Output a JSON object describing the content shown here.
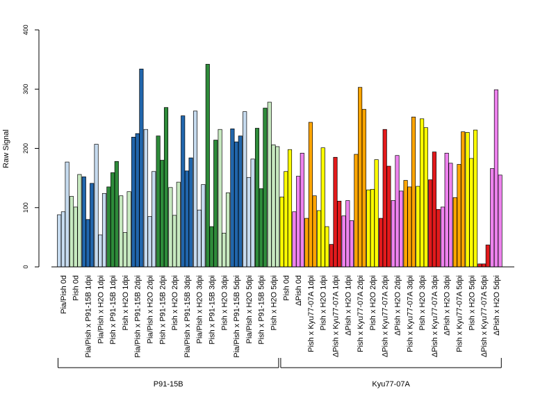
{
  "chart_data": {
    "type": "bar",
    "ylabel": "Raw Signal",
    "ylim": [
      0,
      400
    ],
    "yticks": [
      0,
      100,
      200,
      300,
      400
    ],
    "bars_per_sample": 3,
    "categories": [
      "Pia/Pish 0d",
      "Pish 0d",
      "Pia/Pish x P91-15B 1dpi",
      "Pia/Pish x H2O 1dpi",
      "Pish x P91-15B 1dpi",
      "Pish x H2O 1dpi",
      "Pia/Pish x P91-15B 2dpi",
      "Pia/Pish x H2O 2dpi",
      "Pish x P91-15B 2dpi",
      "Pish x H2O 2dpi",
      "Pia/Pish x P91-15B 3dpi",
      "Pia/Pish x H2O 3dpi",
      "Pish x P91-15B 3dpi",
      "Pish x H2O 3dpi",
      "Pia/Pish x P91-15B 5dpi",
      "Pia/Pish x H2O 5dpi",
      "Pish x P91-15B 5dpi",
      "Pish x H2O 5dpi",
      "Pish 0d",
      "ΔPish 0d",
      "Pish x Kyu77-07A 1dpi",
      "Pish x H2O 1dpi",
      "ΔPish x Kyu77-07A 1dpi",
      "ΔPish x H2O 1dpi",
      "Pish x Kyu77-07A 2dpi",
      "Pish x H2O 2dpi",
      "ΔPish x Kyu77-07A 2dpi",
      "ΔPish x H2O 2dpi",
      "Pish x Kyu77-07A 3dpi",
      "Pish x H2O 3dpi",
      "ΔPish x Kyu77-07A 3dpi",
      "ΔPish x H2O 3dpi",
      "Pish x Kyu77-07A 5dpi",
      "Pish x H2O 5dpi",
      "ΔPish x Kyu77-07A 5dpi",
      "ΔPish x H2O 5dpi"
    ],
    "sample_colors": [
      "#c6dbef",
      "#c7e9c0",
      "#2166ac",
      "#c6dbef",
      "#2e8b3a",
      "#c7e9c0",
      "#2166ac",
      "#c6dbef",
      "#2e8b3a",
      "#c7e9c0",
      "#2166ac",
      "#c6dbef",
      "#2e8b3a",
      "#c7e9c0",
      "#2166ac",
      "#c6dbef",
      "#2e8b3a",
      "#c7e9c0",
      "#ffff00",
      "#ee82ee",
      "#ffa500",
      "#ffff00",
      "#e31a1c",
      "#ee82ee",
      "#ffa500",
      "#ffff00",
      "#e31a1c",
      "#ee82ee",
      "#ffa500",
      "#ffff00",
      "#e31a1c",
      "#ee82ee",
      "#ffa500",
      "#ffff00",
      "#e31a1c",
      "#ee82ee"
    ],
    "values": [
      [
        88,
        93,
        177
      ],
      [
        119,
        101,
        156
      ],
      [
        152,
        80,
        141
      ],
      [
        207,
        54,
        124
      ],
      [
        135,
        159,
        178
      ],
      [
        120,
        58,
        127
      ],
      [
        219,
        225,
        334
      ],
      [
        232,
        85,
        161
      ],
      [
        221,
        180,
        269
      ],
      [
        134,
        87,
        143
      ],
      [
        255,
        162,
        184
      ],
      [
        263,
        96,
        139
      ],
      [
        342,
        68,
        214
      ],
      [
        232,
        57,
        125
      ],
      [
        233,
        211,
        221
      ],
      [
        262,
        151,
        182
      ],
      [
        234,
        132,
        268
      ],
      [
        278,
        206,
        203
      ],
      [
        118,
        161,
        198
      ],
      [
        93,
        153,
        192
      ],
      [
        82,
        244,
        120
      ],
      [
        95,
        201,
        68
      ],
      [
        38,
        185,
        111
      ],
      [
        86,
        112,
        78
      ],
      [
        190,
        303,
        266
      ],
      [
        130,
        131,
        181
      ],
      [
        82,
        232,
        170
      ],
      [
        112,
        188,
        128
      ],
      [
        146,
        135,
        253
      ],
      [
        136,
        250,
        235
      ],
      [
        147,
        194,
        97
      ],
      [
        101,
        192,
        175
      ],
      [
        117,
        173,
        228
      ],
      [
        227,
        183,
        231
      ],
      [
        5,
        5,
        37
      ],
      [
        166,
        299,
        155
      ]
    ],
    "groups": [
      {
        "label": "P91-15B",
        "from": 0,
        "to": 17
      },
      {
        "label": "Kyu77-07A",
        "from": 18,
        "to": 35
      }
    ]
  }
}
